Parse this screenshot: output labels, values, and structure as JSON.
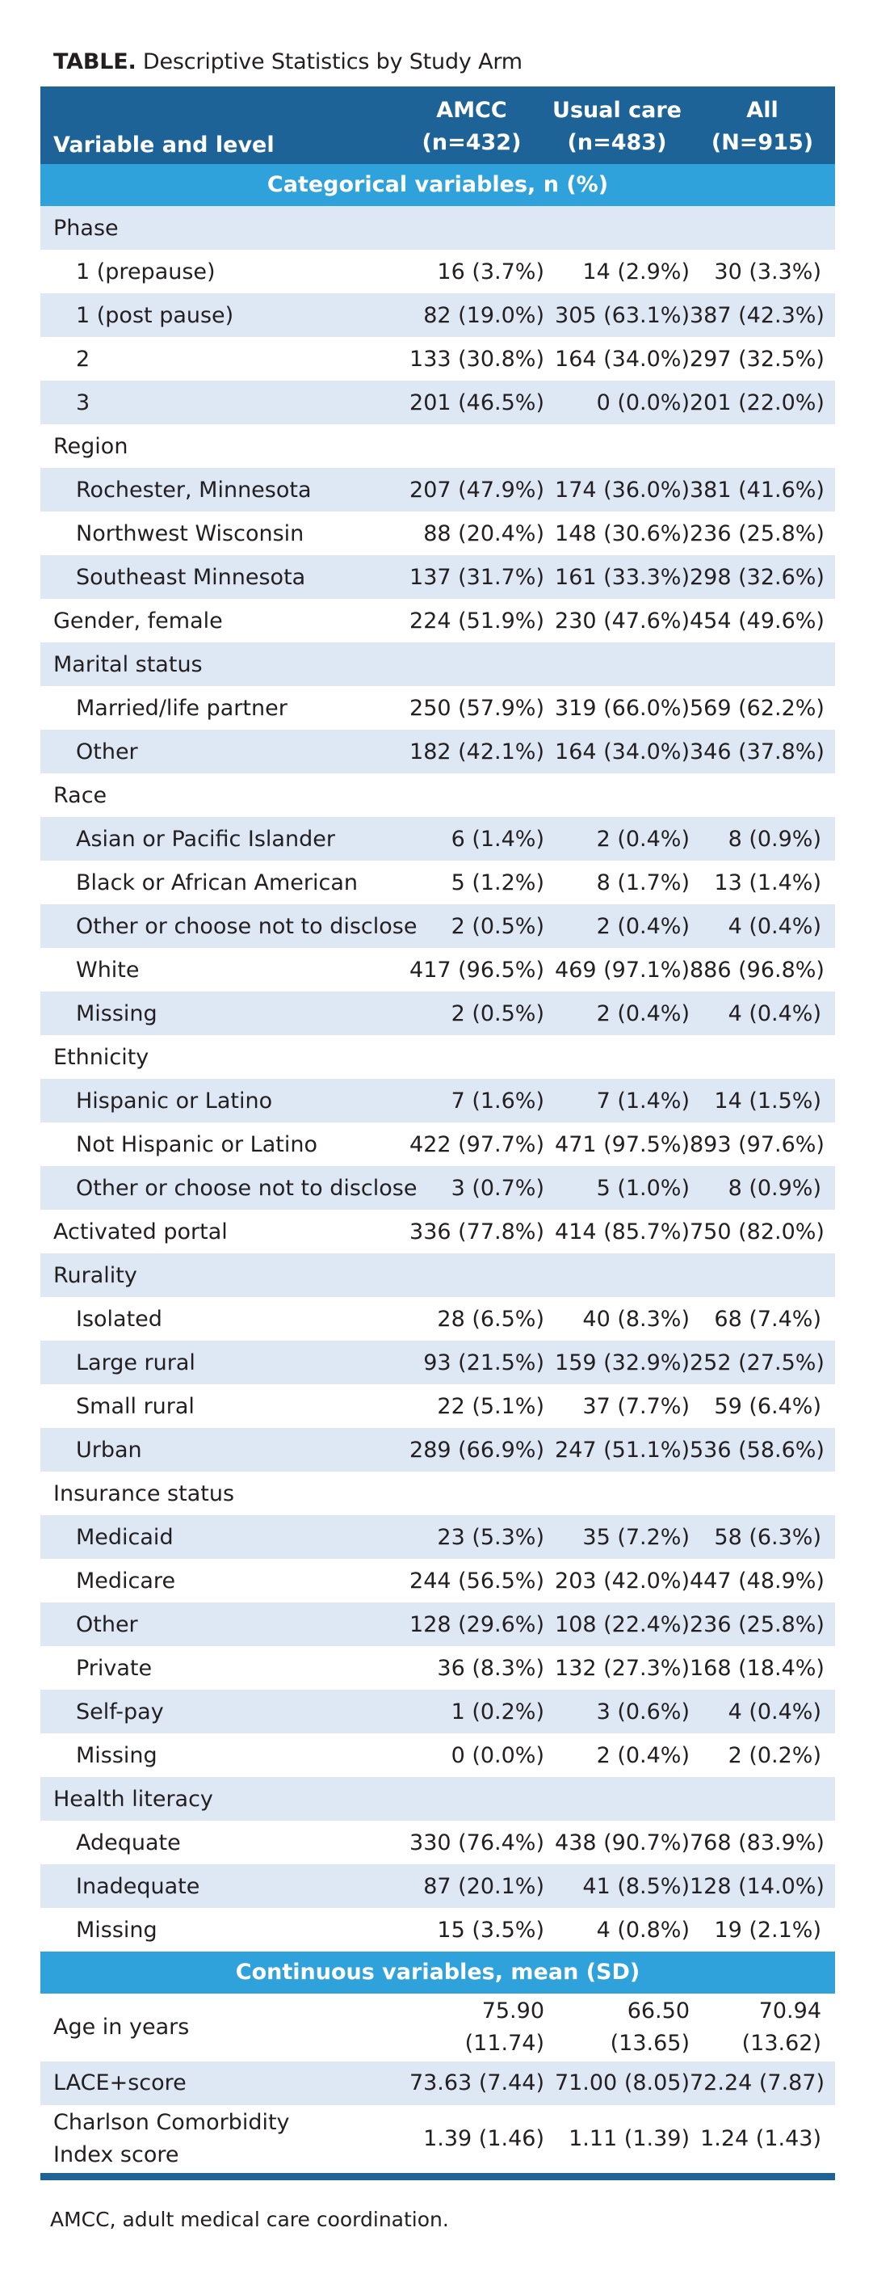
{
  "caption": {
    "label": "TABLE.",
    "text": "Descriptive Statistics by Study Arm"
  },
  "header": {
    "variable": "Variable and level",
    "col1": [
      "AMCC",
      "(n=432)"
    ],
    "col2": [
      "Usual care",
      "(n=483)"
    ],
    "col3": [
      "All",
      "(N=915)"
    ]
  },
  "section_categorical": "Categorical variables, n (%)",
  "section_continuous": "Continuous variables, mean (SD)",
  "rows": [
    {
      "label": "Phase",
      "type": "group",
      "shade": true
    },
    {
      "label": "1 (prepause)",
      "type": "sub",
      "v": [
        "16 (3.7%)",
        "14 (2.9%)",
        "30 (3.3%)"
      ],
      "shade": false
    },
    {
      "label": "1 (post pause)",
      "type": "sub",
      "v": [
        "82 (19.0%)",
        "305 (63.1%)",
        "387 (42.3%)"
      ],
      "shade": true
    },
    {
      "label": "2",
      "type": "sub",
      "v": [
        "133 (30.8%)",
        "164 (34.0%)",
        "297 (32.5%)"
      ],
      "shade": false
    },
    {
      "label": "3",
      "type": "sub",
      "v": [
        "201 (46.5%)",
        "0 (0.0%)",
        "201 (22.0%)"
      ],
      "shade": true
    },
    {
      "label": "Region",
      "type": "group",
      "shade": false
    },
    {
      "label": "Rochester, Minnesota",
      "type": "sub",
      "v": [
        "207 (47.9%)",
        "174 (36.0%)",
        "381 (41.6%)"
      ],
      "shade": true
    },
    {
      "label": "Northwest Wisconsin",
      "type": "sub",
      "v": [
        "88 (20.4%)",
        "148 (30.6%)",
        "236 (25.8%)"
      ],
      "shade": false
    },
    {
      "label": "Southeast Minnesota",
      "type": "sub",
      "v": [
        "137 (31.7%)",
        "161 (33.3%)",
        "298 (32.6%)"
      ],
      "shade": true
    },
    {
      "label": "Gender, female",
      "type": "top",
      "v": [
        "224 (51.9%)",
        "230 (47.6%)",
        "454 (49.6%)"
      ],
      "shade": false
    },
    {
      "label": "Marital status",
      "type": "group",
      "shade": true
    },
    {
      "label": "Married/life partner",
      "type": "sub",
      "v": [
        "250 (57.9%)",
        "319 (66.0%)",
        "569 (62.2%)"
      ],
      "shade": false
    },
    {
      "label": "Other",
      "type": "sub",
      "v": [
        "182 (42.1%)",
        "164 (34.0%)",
        "346 (37.8%)"
      ],
      "shade": true
    },
    {
      "label": "Race",
      "type": "group",
      "shade": false
    },
    {
      "label": "Asian or Pacific Islander",
      "type": "sub",
      "v": [
        "6 (1.4%)",
        "2 (0.4%)",
        "8 (0.9%)"
      ],
      "shade": true
    },
    {
      "label": "Black or African American",
      "type": "sub",
      "v": [
        "5 (1.2%)",
        "8 (1.7%)",
        "13 (1.4%)"
      ],
      "shade": false
    },
    {
      "label": "Other or choose not to disclose",
      "type": "sub",
      "v": [
        "2 (0.5%)",
        "2 (0.4%)",
        "4 (0.4%)"
      ],
      "shade": true
    },
    {
      "label": "White",
      "type": "sub",
      "v": [
        "417 (96.5%)",
        "469 (97.1%)",
        "886 (96.8%)"
      ],
      "shade": false
    },
    {
      "label": "Missing",
      "type": "sub",
      "v": [
        "2 (0.5%)",
        "2 (0.4%)",
        "4 (0.4%)"
      ],
      "shade": true
    },
    {
      "label": "Ethnicity",
      "type": "group",
      "shade": false
    },
    {
      "label": "Hispanic or Latino",
      "type": "sub",
      "v": [
        "7 (1.6%)",
        "7 (1.4%)",
        "14 (1.5%)"
      ],
      "shade": true
    },
    {
      "label": "Not Hispanic or Latino",
      "type": "sub",
      "v": [
        "422 (97.7%)",
        "471 (97.5%)",
        "893 (97.6%)"
      ],
      "shade": false
    },
    {
      "label": "Other or choose not to disclose",
      "type": "sub",
      "v": [
        "3 (0.7%)",
        "5 (1.0%)",
        "8 (0.9%)"
      ],
      "shade": true
    },
    {
      "label": "Activated portal",
      "type": "top",
      "v": [
        "336 (77.8%)",
        "414 (85.7%)",
        "750 (82.0%)"
      ],
      "shade": false
    },
    {
      "label": "Rurality",
      "type": "group",
      "shade": true
    },
    {
      "label": "Isolated",
      "type": "sub",
      "v": [
        "28 (6.5%)",
        "40 (8.3%)",
        "68 (7.4%)"
      ],
      "shade": false
    },
    {
      "label": "Large rural",
      "type": "sub",
      "v": [
        "93 (21.5%)",
        "159 (32.9%)",
        "252 (27.5%)"
      ],
      "shade": true
    },
    {
      "label": "Small rural",
      "type": "sub",
      "v": [
        "22 (5.1%)",
        "37 (7.7%)",
        "59 (6.4%)"
      ],
      "shade": false
    },
    {
      "label": "Urban",
      "type": "sub",
      "v": [
        "289 (66.9%)",
        "247 (51.1%)",
        "536 (58.6%)"
      ],
      "shade": true
    },
    {
      "label": "Insurance status",
      "type": "group",
      "shade": false
    },
    {
      "label": "Medicaid",
      "type": "sub",
      "v": [
        "23 (5.3%)",
        "35 (7.2%)",
        "58 (6.3%)"
      ],
      "shade": true
    },
    {
      "label": "Medicare",
      "type": "sub",
      "v": [
        "244 (56.5%)",
        "203 (42.0%)",
        "447 (48.9%)"
      ],
      "shade": false
    },
    {
      "label": "Other",
      "type": "sub",
      "v": [
        "128 (29.6%)",
        "108 (22.4%)",
        "236 (25.8%)"
      ],
      "shade": true
    },
    {
      "label": "Private",
      "type": "sub",
      "v": [
        "36 (8.3%)",
        "132 (27.3%)",
        "168 (18.4%)"
      ],
      "shade": false
    },
    {
      "label": "Self-pay",
      "type": "sub",
      "v": [
        "1 (0.2%)",
        "3 (0.6%)",
        "4 (0.4%)"
      ],
      "shade": true
    },
    {
      "label": "Missing",
      "type": "sub",
      "v": [
        "0 (0.0%)",
        "2 (0.4%)",
        "2 (0.2%)"
      ],
      "shade": false
    },
    {
      "label": "Health literacy",
      "type": "group",
      "shade": true
    },
    {
      "label": "Adequate",
      "type": "sub",
      "v": [
        "330 (76.4%)",
        "438 (90.7%)",
        "768 (83.9%)"
      ],
      "shade": false
    },
    {
      "label": "Inadequate",
      "type": "sub",
      "v": [
        "87 (20.1%)",
        "41 (8.5%)",
        "128 (14.0%)"
      ],
      "shade": true
    },
    {
      "label": "Missing",
      "type": "sub",
      "v": [
        "15 (3.5%)",
        "4 (0.8%)",
        "19 (2.1%)"
      ],
      "shade": false
    }
  ],
  "continuous": [
    {
      "label": [
        "Age in years"
      ],
      "v": [
        [
          "75.90",
          "(11.74)"
        ],
        [
          "66.50",
          "(13.65)"
        ],
        [
          "70.94",
          "(13.62)"
        ]
      ],
      "shade": false,
      "kind": "stacked"
    },
    {
      "label": [
        "LACE+score"
      ],
      "v": [
        [
          "73.63 (7.44)"
        ],
        [
          "71.00 (8.05)"
        ],
        [
          "72.24 (7.87)"
        ]
      ],
      "shade": true,
      "kind": "single"
    },
    {
      "label": [
        "Charlson Comorbidity",
        "Index score"
      ],
      "v": [
        [
          "1.39 (1.46)"
        ],
        [
          "1.11 (1.39)"
        ],
        [
          "1.24 (1.43)"
        ]
      ],
      "shade": false,
      "kind": "twolabel"
    }
  ],
  "footnote": "AMCC, adult medical care coordination."
}
